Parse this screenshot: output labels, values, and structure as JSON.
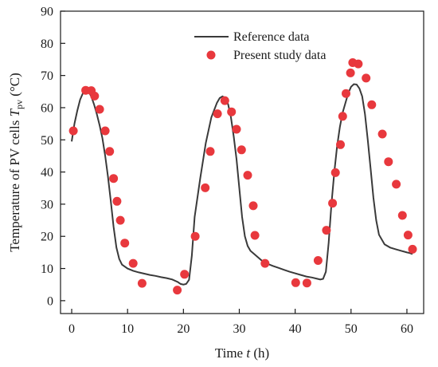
{
  "chart_data": {
    "type": "line",
    "title": "",
    "xlabel": "Time t (h)",
    "xlabel_parts": {
      "before": "Time ",
      "italic": "t",
      "after": " (h)"
    },
    "ylabel": "Temperature of PV cells Tpv (°C)",
    "ylabel_parts": {
      "before": "Temperature of PV cells ",
      "italic": "T",
      "sub": "pv",
      "after": " (°C)"
    },
    "xlim": [
      -2,
      63
    ],
    "ylim": [
      -4,
      90
    ],
    "xticks": [
      0,
      10,
      20,
      30,
      40,
      50,
      60
    ],
    "yticks": [
      0,
      10,
      20,
      30,
      40,
      50,
      60,
      70,
      80,
      90
    ],
    "grid": false,
    "legend_position": "top-right",
    "colors": {
      "reference": "#3a3a3a",
      "present": "#e8383d",
      "axis": "#1a1a1a"
    },
    "series": [
      {
        "name": "Reference data",
        "kind": "line",
        "x": [
          0,
          0.5,
          1,
          1.5,
          2,
          2.5,
          3,
          3.5,
          4,
          4.5,
          5,
          5.5,
          6,
          6.5,
          7,
          7.5,
          8,
          8.5,
          9,
          10,
          11,
          12,
          13,
          14,
          15,
          16,
          17,
          18,
          19,
          19.5,
          20,
          20.5,
          21,
          21.5,
          22,
          23,
          24,
          25,
          26,
          26.5,
          27,
          27.5,
          28,
          28.5,
          29,
          29.5,
          30,
          30.5,
          31,
          31.5,
          32,
          33,
          34,
          35,
          36,
          37,
          38,
          39,
          40,
          41,
          42,
          43,
          44,
          44.5,
          45,
          45.5,
          46,
          46.5,
          47,
          47.5,
          48,
          48.5,
          49,
          49.5,
          50,
          50.5,
          51,
          51.5,
          52,
          52.5,
          53,
          53.5,
          54,
          54.5,
          55,
          56,
          57,
          58,
          59,
          60,
          60.5,
          61
        ],
        "y": [
          49.5,
          55,
          59,
          62.5,
          64.5,
          65.3,
          65,
          63.5,
          61,
          58,
          54.5,
          50.5,
          45,
          38.5,
          31,
          23,
          16.5,
          13,
          11.2,
          10,
          9.3,
          8.8,
          8.4,
          8,
          7.7,
          7.3,
          7,
          6.6,
          5.8,
          5.2,
          5,
          5.2,
          6.5,
          14,
          26,
          38,
          49,
          57,
          61.5,
          63,
          63.5,
          63,
          61,
          57,
          51,
          44,
          35,
          26,
          20,
          17,
          15.5,
          14,
          12.5,
          11.5,
          10.8,
          10.2,
          9.6,
          9,
          8.5,
          8,
          7.5,
          7.2,
          6.8,
          6.6,
          6.8,
          9,
          18,
          30,
          40,
          48,
          54,
          58.5,
          61.5,
          64.5,
          66.5,
          67.3,
          67.2,
          66,
          63.5,
          58,
          50,
          41,
          32,
          25,
          20.5,
          17.5,
          16.5,
          16,
          15.5,
          15,
          14.8,
          14.5
        ]
      },
      {
        "name": "Present study data",
        "kind": "scatter",
        "x": [
          0.3,
          2.5,
          3.5,
          4.1,
          5,
          6,
          6.8,
          7.5,
          8.1,
          8.7,
          9.5,
          11,
          12.6,
          18.9,
          20.2,
          22.1,
          23.9,
          24.8,
          26.1,
          27.4,
          28.6,
          29.5,
          30.4,
          31.5,
          32.5,
          32.8,
          34.6,
          40.1,
          42.1,
          44.1,
          45.6,
          46.7,
          47.2,
          48.1,
          48.5,
          49.1,
          49.9,
          50.3,
          51.3,
          52.7,
          53.7,
          55.6,
          56.7,
          58.1,
          59.2,
          60.2,
          61
        ],
        "y": [
          52.8,
          65.4,
          65.3,
          63.6,
          59.5,
          52.8,
          46.4,
          38,
          30.9,
          25,
          17.9,
          11.6,
          5.4,
          3.3,
          8.2,
          20,
          35.1,
          46.4,
          58.1,
          62.2,
          58.7,
          53.3,
          46.9,
          39,
          29.5,
          20.3,
          11.6,
          5.6,
          5.5,
          12.5,
          21.9,
          30.3,
          39.8,
          48.5,
          57.3,
          64.4,
          70.8,
          74,
          73.6,
          69.2,
          60.9,
          51.8,
          43.2,
          36.2,
          26.5,
          20.4,
          16
        ]
      }
    ]
  }
}
